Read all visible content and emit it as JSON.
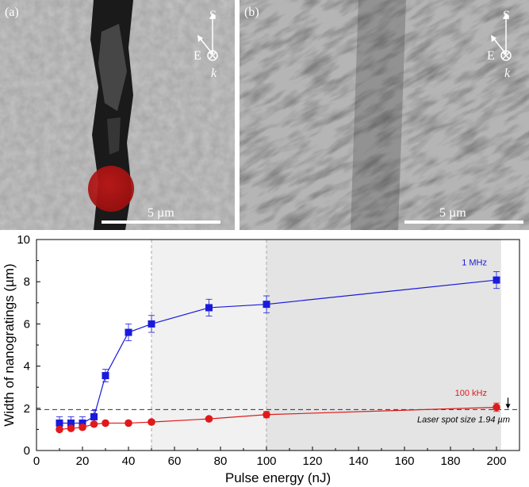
{
  "panels": [
    {
      "label": "(a)",
      "scale_text": "5 µm",
      "s_label": "S",
      "e_label": "E",
      "k_label": "k"
    },
    {
      "label": "(b)",
      "scale_text": "5 µm",
      "s_label": "S",
      "e_label": "E",
      "k_label": "k"
    }
  ],
  "chart_data": {
    "type": "line",
    "xlabel": "Pulse energy (nJ)",
    "ylabel": "Width of nanogratings (µm)",
    "xlim": [
      0,
      210
    ],
    "ylim": [
      0,
      10
    ],
    "xticks": [
      "0",
      "20",
      "40",
      "60",
      "80",
      "100",
      "120",
      "140",
      "160",
      "180",
      "200"
    ],
    "yticks": [
      "0",
      "2",
      "4",
      "6",
      "8",
      "10"
    ],
    "series": [
      {
        "name": "1 MHz",
        "color": "#1a1adc",
        "marker": "square",
        "x": [
          10,
          15,
          20,
          25,
          30,
          40,
          50,
          75,
          100,
          200
        ],
        "y": [
          1.3,
          1.3,
          1.3,
          1.6,
          3.55,
          5.6,
          6.0,
          6.77,
          6.93,
          8.08
        ],
        "err": [
          0.3,
          0.3,
          0.3,
          0.3,
          0.3,
          0.4,
          0.4,
          0.4,
          0.4,
          0.4
        ]
      },
      {
        "name": "100 kHz",
        "color": "#e01a1a",
        "marker": "circle",
        "x": [
          10,
          15,
          20,
          25,
          30,
          40,
          50,
          75,
          100,
          200
        ],
        "y": [
          1.0,
          1.05,
          1.1,
          1.25,
          1.3,
          1.3,
          1.35,
          1.5,
          1.7,
          2.05
        ],
        "err": [
          0.1,
          0.1,
          0.1,
          0.1,
          0.1,
          0.1,
          0.1,
          0.1,
          0.15,
          0.2
        ]
      }
    ],
    "reference_line": {
      "y": 1.94,
      "label": "Laser spot size 1.94 µm"
    },
    "shaded_regions": [
      {
        "x0": 50,
        "x1": 100,
        "color": "#f1f1f1"
      },
      {
        "x0": 100,
        "x1": 202,
        "color": "#e4e4e4"
      }
    ]
  }
}
